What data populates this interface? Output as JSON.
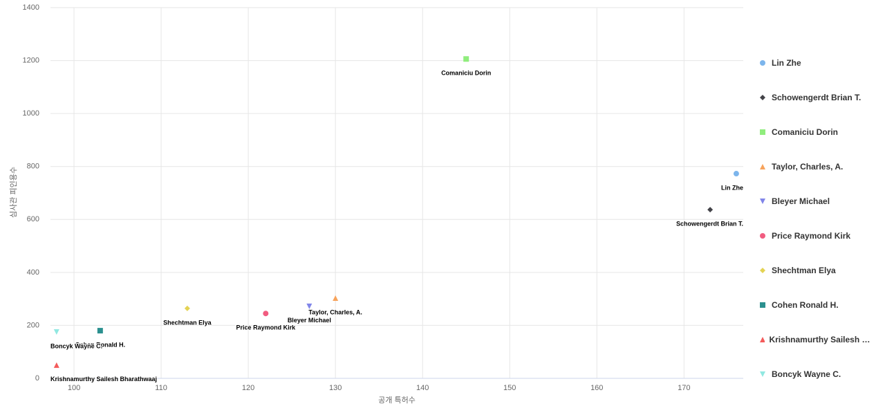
{
  "chart_data": {
    "type": "scatter",
    "x_label": "공개 특허수",
    "y_label": "심사관 피인용수",
    "xlim": [
      97.3,
      176.8
    ],
    "xticks": [
      100,
      110,
      120,
      130,
      140,
      150,
      160,
      170
    ],
    "ylim": [
      0,
      1400
    ],
    "yticks": [
      0,
      200,
      400,
      600,
      800,
      1000,
      1200,
      1400
    ],
    "grid": true,
    "legend": "right",
    "series": [
      {
        "name": "Lin Zhe",
        "color": "#7cb5ec",
        "marker": "circle",
        "x": [
          176
        ],
        "values": [
          773
        ]
      },
      {
        "name": "Schowengerdt Brian T.",
        "color": "#434348",
        "marker": "diamond",
        "x": [
          173
        ],
        "values": [
          637
        ]
      },
      {
        "name": "Comaniciu Dorin",
        "color": "#90ed7d",
        "marker": "square",
        "x": [
          145
        ],
        "values": [
          1206
        ]
      },
      {
        "name": "Taylor, Charles, A.",
        "color": "#f7a35c",
        "marker": "triangle",
        "x": [
          130
        ],
        "values": [
          303
        ]
      },
      {
        "name": "Bleyer Michael",
        "color": "#8085e9",
        "marker": "triangle-down",
        "x": [
          127
        ],
        "values": [
          272
        ]
      },
      {
        "name": "Price Raymond Kirk",
        "color": "#f15c80",
        "marker": "circle",
        "x": [
          122
        ],
        "values": [
          245
        ]
      },
      {
        "name": "Shechtman Elya",
        "color": "#e4d354",
        "marker": "diamond",
        "x": [
          113
        ],
        "values": [
          264
        ]
      },
      {
        "name": "Cohen Ronald H.",
        "color": "#2b908f",
        "marker": "square",
        "x": [
          103
        ],
        "values": [
          180
        ]
      },
      {
        "name": "Krishnamurthy Sailesh Bharathwaaj",
        "color": "#f45b5b",
        "marker": "triangle",
        "x": [
          98
        ],
        "values": [
          50
        ]
      },
      {
        "name": "Boncyk Wayne C.",
        "color": "#91e8e1",
        "marker": "triangle-down",
        "x": [
          98
        ],
        "values": [
          175
        ]
      }
    ]
  }
}
